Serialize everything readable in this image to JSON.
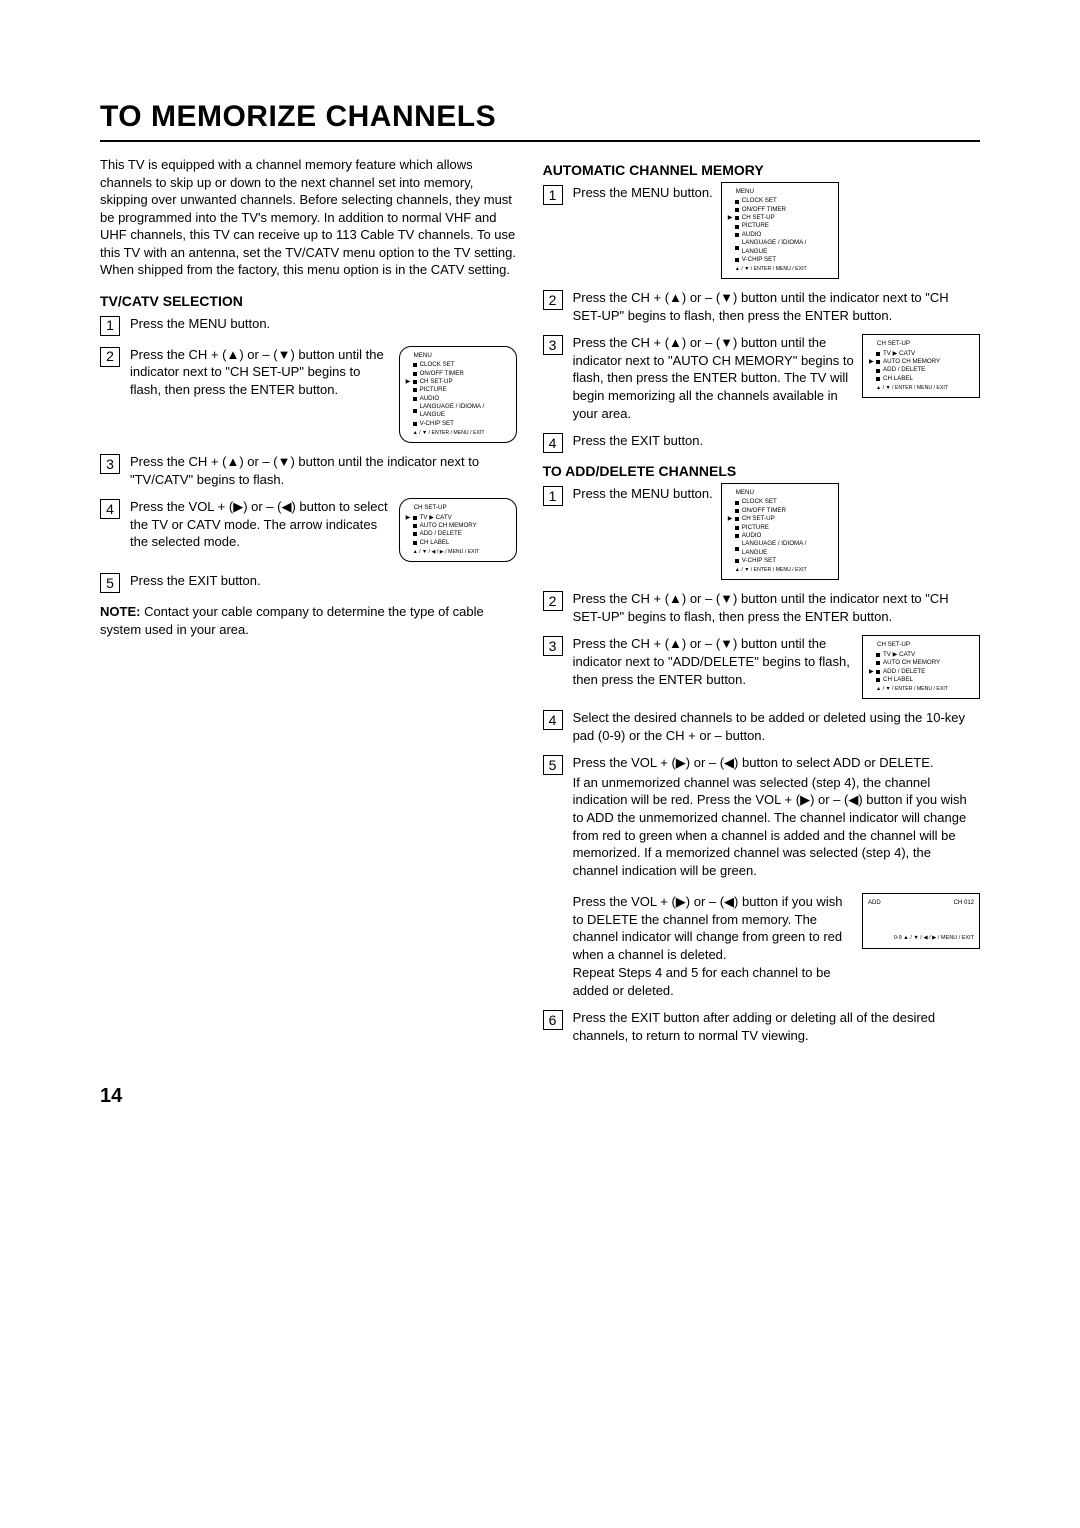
{
  "title": "TO MEMORIZE CHANNELS",
  "intro": "This TV is equipped with a channel memory feature which allows channels to skip up or down to the next channel set into memory, skipping over unwanted channels. Before selecting channels, they must be programmed into the TV's memory. In addition to normal VHF and UHF channels, this TV can receive up to 113 Cable TV channels. To use this TV with an antenna, set the TV/CATV menu option to the TV setting. When shipped from the factory, this menu option is in the CATV setting.",
  "left": {
    "h": "TV/CATV SELECTION",
    "s1": "Press the MENU button.",
    "s2": "Press the CH + (▲) or – (▼) button until the indicator next to \"CH SET-UP\" begins to flash, then press the ENTER button.",
    "s3": "Press the CH + (▲) or – (▼) button until the indicator next to \"TV/CATV\" begins to flash.",
    "s4": "Press the VOL + (▶) or – (◀) button to select the TV or CATV mode. The arrow indicates the selected mode.",
    "s5": "Press the EXIT button.",
    "note_label": "NOTE:",
    "note": " Contact your cable company to determine the type of cable system used in your area."
  },
  "right": {
    "auto_h": "AUTOMATIC CHANNEL MEMORY",
    "a1": "Press the MENU button.",
    "a2": "Press the CH + (▲) or – (▼) button until the indicator next to \"CH SET-UP\" begins to flash, then press the ENTER button.",
    "a3": "Press the CH + (▲) or – (▼) button until the indicator next to \"AUTO CH MEMORY\" begins to flash, then press the ENTER button. The TV will begin memorizing all the channels available in your area.",
    "a4": "Press the EXIT button.",
    "add_h": "TO ADD/DELETE CHANNELS",
    "d1": "Press the MENU button.",
    "d2": "Press the CH + (▲) or – (▼) button until the indicator next to \"CH SET-UP\" begins to flash, then press the ENTER button.",
    "d3": "Press the CH + (▲) or – (▼) button until the indicator next to \"ADD/DELETE\" begins to flash, then press the ENTER button.",
    "d4": "Select the desired channels to be added or deleted using the 10-key pad (0-9) or the CH + or – button.",
    "d5a": "Press the VOL + (▶) or – (◀) button to select ADD or DELETE.",
    "d5b": "If an unmemorized channel was selected (step 4), the channel indication will be red. Press the VOL + (▶) or – (◀) button if you wish to ADD the unmemorized channel. The channel indicator will change from red to green when a channel is added and the channel will be memorized. If a memorized channel was selected (step 4), the channel indication will be green.",
    "d5c": "Press the VOL + (▶) or – (◀) button if you wish to DELETE the channel from memory. The channel indicator will change from green to red when a channel is deleted.",
    "d5d": "Repeat Steps 4 and 5 for each channel to be added or deleted.",
    "d6": "Press the EXIT button after adding or deleting all of the desired channels, to return to normal TV viewing."
  },
  "menu_main": {
    "hdr": "MENU",
    "items": [
      "CLOCK SET",
      "ON/OFF TIMER",
      "CH  SET-UP",
      "PICTURE",
      "AUDIO",
      "LANGUAGE / IDIOMA / LANGUE",
      "V-CHIP SET"
    ],
    "foot": "▲ / ▼ / ENTER / MENU / EXIT",
    "sel": 2
  },
  "menu_chsetup_tv": {
    "hdr": "CH SET-UP",
    "items": [
      "  TV ▶ CATV",
      "AUTO  CH  MEMORY",
      "ADD / DELETE",
      "CH LABEL"
    ],
    "foot": "▲ / ▼ / ◀ / ▶ / MENU / EXIT",
    "sel": 0
  },
  "menu_chsetup_auto": {
    "hdr": "CH SET-UP",
    "items": [
      "  TV ▶ CATV",
      "AUTO  CH  MEMORY",
      "ADD / DELETE",
      "CH LABEL"
    ],
    "foot": "▲ / ▼ / ENTER / MENU / EXIT",
    "sel": 1
  },
  "menu_chsetup_add": {
    "hdr": "CH SET-UP",
    "items": [
      "  TV ▶ CATV",
      "AUTO  CH  MEMORY",
      "ADD / DELETE",
      "CH LABEL"
    ],
    "foot": "▲ / ▼ / ENTER / MENU / EXIT",
    "sel": 2
  },
  "addbox": {
    "l": "ADD",
    "r": "CH 012",
    "foot": "0-9 ▲ / ▼ / ◀ / ▶ / MENU / EXIT"
  },
  "pagenum": "14"
}
